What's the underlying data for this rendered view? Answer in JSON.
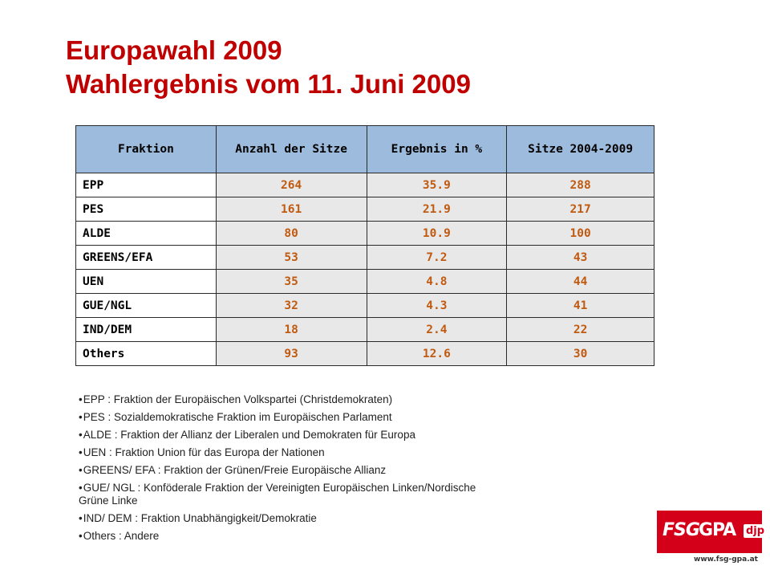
{
  "title": {
    "line1": "Europawahl 2009",
    "line2": "Wahlergebnis vom 11. Juni 2009"
  },
  "table": {
    "headers": [
      "Fraktion",
      "Anzahl der Sitze",
      "Ergebnis in %",
      "Sitze 2004-2009"
    ],
    "rows": [
      {
        "fraktion": "EPP",
        "sitze": "264",
        "ergebnis": "35.9",
        "sitze_alt": "288"
      },
      {
        "fraktion": "PES",
        "sitze": "161",
        "ergebnis": "21.9",
        "sitze_alt": "217"
      },
      {
        "fraktion": "ALDE",
        "sitze": "80",
        "ergebnis": "10.9",
        "sitze_alt": "100"
      },
      {
        "fraktion": "GREENS/EFA",
        "sitze": "53",
        "ergebnis": "7.2",
        "sitze_alt": "43"
      },
      {
        "fraktion": "UEN",
        "sitze": "35",
        "ergebnis": "4.8",
        "sitze_alt": "44"
      },
      {
        "fraktion": "GUE/NGL",
        "sitze": "32",
        "ergebnis": "4.3",
        "sitze_alt": "41"
      },
      {
        "fraktion": "IND/DEM",
        "sitze": "18",
        "ergebnis": "2.4",
        "sitze_alt": "22"
      },
      {
        "fraktion": "Others",
        "sitze": "93",
        "ergebnis": "12.6",
        "sitze_alt": "30"
      }
    ]
  },
  "legend": [
    "EPP : Fraktion der Europäischen Volkspartei (Christdemokraten)",
    "PES : Sozialdemokratische Fraktion im Europäischen Parlament",
    "ALDE : Fraktion der Allianz der Liberalen und Demokraten für Europa",
    "UEN : Fraktion Union für das Europa der Nationen",
    "GREENS/ EFA : Fraktion der Grünen/Freie Europäische Allianz",
    "GUE/ NGL : Konföderale Fraktion der Vereinigten Europäischen Linken/Nordische Grüne Linke",
    "IND/ DEM : Fraktion Unabhängigkeit/Demokratie",
    "Others : Andere"
  ],
  "logo": {
    "fsg": "FSG",
    "gpa": "GPA",
    "djp": "djp",
    "url": "www.fsg-gpa.at"
  },
  "colors": {
    "title": "#c00000",
    "header_bg": "#9dbbdd",
    "value_text": "#c05a10",
    "value_bg": "#e8e8e8",
    "logo_red": "#d4001a"
  }
}
